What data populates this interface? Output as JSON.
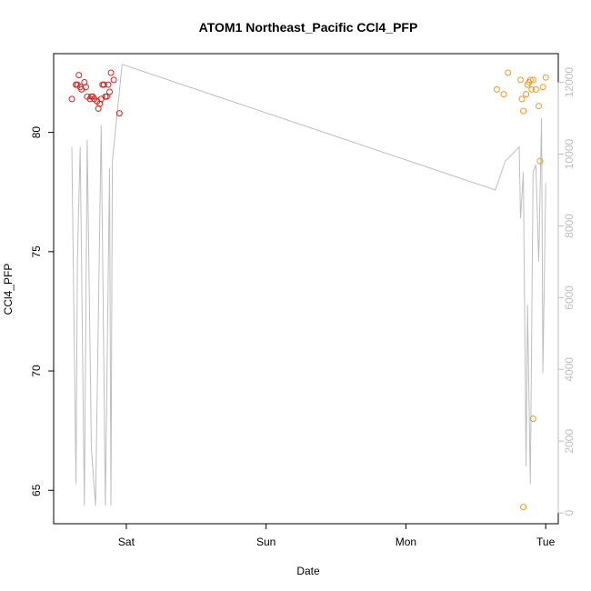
{
  "chart_data": {
    "type": "scatter",
    "title": "ATOM1 Northeast_Pacific CCl4_PFP",
    "xlabel": "Date",
    "ylabel": "CCl4_PFP",
    "x_ticks": [
      {
        "value": 1.0,
        "label": "Sat"
      },
      {
        "value": 2.0,
        "label": "Sun"
      },
      {
        "value": 3.0,
        "label": "Mon"
      },
      {
        "value": 4.0,
        "label": "Tue"
      }
    ],
    "xlim": [
      0.48,
      4.09
    ],
    "ylim": [
      63.6,
      83.3
    ],
    "y_ticks": [
      65,
      70,
      75,
      80
    ],
    "y2_ticks": [
      0,
      2000,
      4000,
      6000,
      8000,
      10000,
      12000
    ],
    "y2lim": [
      -300,
      12800
    ],
    "colors": {
      "series1": "#DF1F1F",
      "series2": "#F09A1E",
      "altitude": "#BEBEBE",
      "right_axis": "#BEBEBE"
    },
    "series": [
      {
        "color": "#DF1F1F",
        "points": [
          [
            0.61,
            81.4
          ],
          [
            0.64,
            82.0
          ],
          [
            0.65,
            82.0
          ],
          [
            0.66,
            82.4
          ],
          [
            0.67,
            81.9
          ],
          [
            0.68,
            81.8
          ],
          [
            0.7,
            82.1
          ],
          [
            0.71,
            81.9
          ],
          [
            0.72,
            81.5
          ],
          [
            0.74,
            81.4
          ],
          [
            0.75,
            81.5
          ],
          [
            0.76,
            81.5
          ],
          [
            0.77,
            81.4
          ],
          [
            0.79,
            81.3
          ],
          [
            0.8,
            81.0
          ],
          [
            0.81,
            81.2
          ],
          [
            0.82,
            81.4
          ],
          [
            0.83,
            82.0
          ],
          [
            0.84,
            82.0
          ],
          [
            0.85,
            81.5
          ],
          [
            0.86,
            81.5
          ],
          [
            0.87,
            82.0
          ],
          [
            0.88,
            81.7
          ],
          [
            0.89,
            82.5
          ],
          [
            0.91,
            82.2
          ],
          [
            0.95,
            80.8
          ]
        ]
      },
      {
        "color": "#F09A1E",
        "points": [
          [
            3.65,
            81.8
          ],
          [
            3.7,
            81.6
          ],
          [
            3.73,
            82.5
          ],
          [
            3.82,
            82.2
          ],
          [
            3.83,
            81.4
          ],
          [
            3.84,
            80.9
          ],
          [
            3.86,
            81.6
          ],
          [
            3.87,
            82.0
          ],
          [
            3.88,
            82.1
          ],
          [
            3.89,
            82.2
          ],
          [
            3.9,
            81.8
          ],
          [
            3.91,
            82.2
          ],
          [
            3.93,
            81.8
          ],
          [
            3.95,
            81.1
          ],
          [
            3.96,
            78.8
          ],
          [
            3.98,
            81.9
          ],
          [
            4.0,
            82.3
          ],
          [
            3.84,
            64.3
          ],
          [
            3.91,
            68.0
          ]
        ]
      }
    ],
    "altitude_line": {
      "axis": "right",
      "points": [
        [
          0.61,
          10200
        ],
        [
          0.64,
          800
        ],
        [
          0.65,
          7000
        ],
        [
          0.67,
          10200
        ],
        [
          0.7,
          200
        ],
        [
          0.72,
          10400
        ],
        [
          0.75,
          1800
        ],
        [
          0.78,
          200
        ],
        [
          0.82,
          10800
        ],
        [
          0.85,
          200
        ],
        [
          0.88,
          9600
        ],
        [
          0.89,
          200
        ],
        [
          0.9,
          9800
        ],
        [
          0.97,
          12500
        ],
        [
          3.64,
          9000
        ],
        [
          3.71,
          9800
        ],
        [
          3.81,
          10200
        ],
        [
          3.82,
          8200
        ],
        [
          3.84,
          9500
        ],
        [
          3.86,
          1300
        ],
        [
          3.87,
          5800
        ],
        [
          3.89,
          800
        ],
        [
          3.91,
          9500
        ],
        [
          3.93,
          9700
        ],
        [
          3.95,
          7000
        ],
        [
          3.97,
          11000
        ],
        [
          3.98,
          3900
        ],
        [
          4.0,
          9200
        ]
      ]
    }
  }
}
